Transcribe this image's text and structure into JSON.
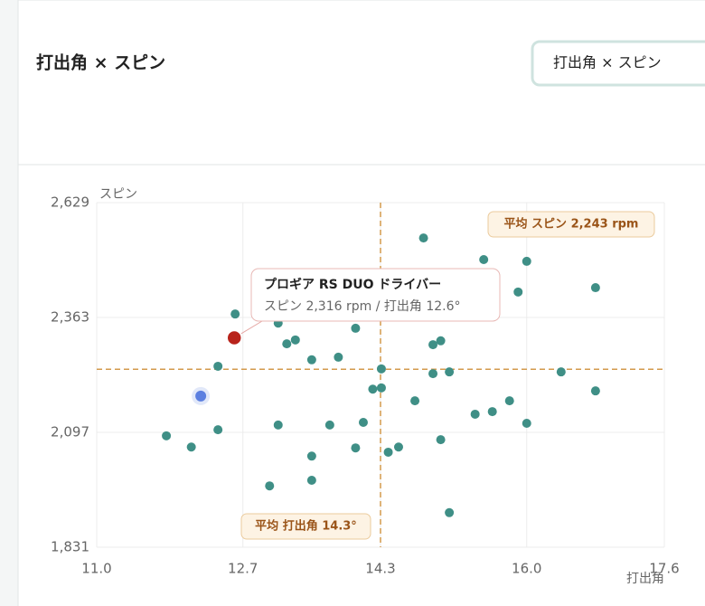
{
  "header": {
    "title": "打出角 × スピン",
    "select": "打出角 × スピン"
  },
  "chart_data": {
    "type": "scatter",
    "xlabel": "打出角",
    "ylabel": "スピン",
    "xlim": [
      11.0,
      17.6
    ],
    "xticks": [
      {
        "value": 11,
        "label": "11.0"
      },
      12.7,
      14.3,
      {
        "value": 16,
        "label": "16.0"
      },
      17.6
    ],
    "ylim": [
      1831,
      2629
    ],
    "yticks": [
      {
        "value": 1831,
        "label": "1,831"
      },
      {
        "value": 2097,
        "label": "2,097"
      },
      {
        "value": 2363,
        "label": "2,363"
      },
      {
        "value": 2629,
        "label": "2,629"
      }
    ],
    "grid": true,
    "color": "#3f8f86",
    "x": [
      14.8,
      15.5,
      16.0,
      15.9,
      16.8,
      12.61,
      13.11,
      14.01,
      13.21,
      13.31,
      13.5,
      13.81,
      14.91,
      15.0,
      12.41,
      14.31,
      14.91,
      15.1,
      16.4,
      14.21,
      14.31,
      14.7,
      16.8,
      15.8,
      15.6,
      15.4,
      16.0,
      11.81,
      12.1,
      12.41,
      13.11,
      13.71,
      14.1,
      14.01,
      13.5,
      14.39,
      14.51,
      15.0,
      13.01,
      13.5,
      15.1
    ],
    "y": [
      2547,
      2497,
      2493,
      2422,
      2432,
      2371,
      2350,
      2338,
      2302,
      2311,
      2265,
      2271,
      2300,
      2309,
      2250,
      2244,
      2233,
      2237,
      2237,
      2197,
      2200,
      2170,
      2193,
      2170,
      2145,
      2139,
      2118,
      2089,
      2063,
      2103,
      2114,
      2114,
      2120,
      2061,
      2042,
      2051,
      2063,
      2080,
      1973,
      1986,
      1911
    ],
    "highlight": {
      "x": 12.6,
      "y": 2316,
      "color": "#b8231b",
      "title": "プロギア RS DUO ドライバー",
      "detail": "スピン 2,316 rpm / 打出角 12.6°"
    },
    "selected": {
      "x": 12.21,
      "y": 2181,
      "color": "#5b7fe0"
    },
    "average_y": {
      "value": 2243,
      "label": "平均 スピン 2,243 rpm"
    },
    "average_x": {
      "value": 14.3,
      "label": "平均 打出角 14.3°"
    },
    "average_color": "#d39a4c"
  }
}
